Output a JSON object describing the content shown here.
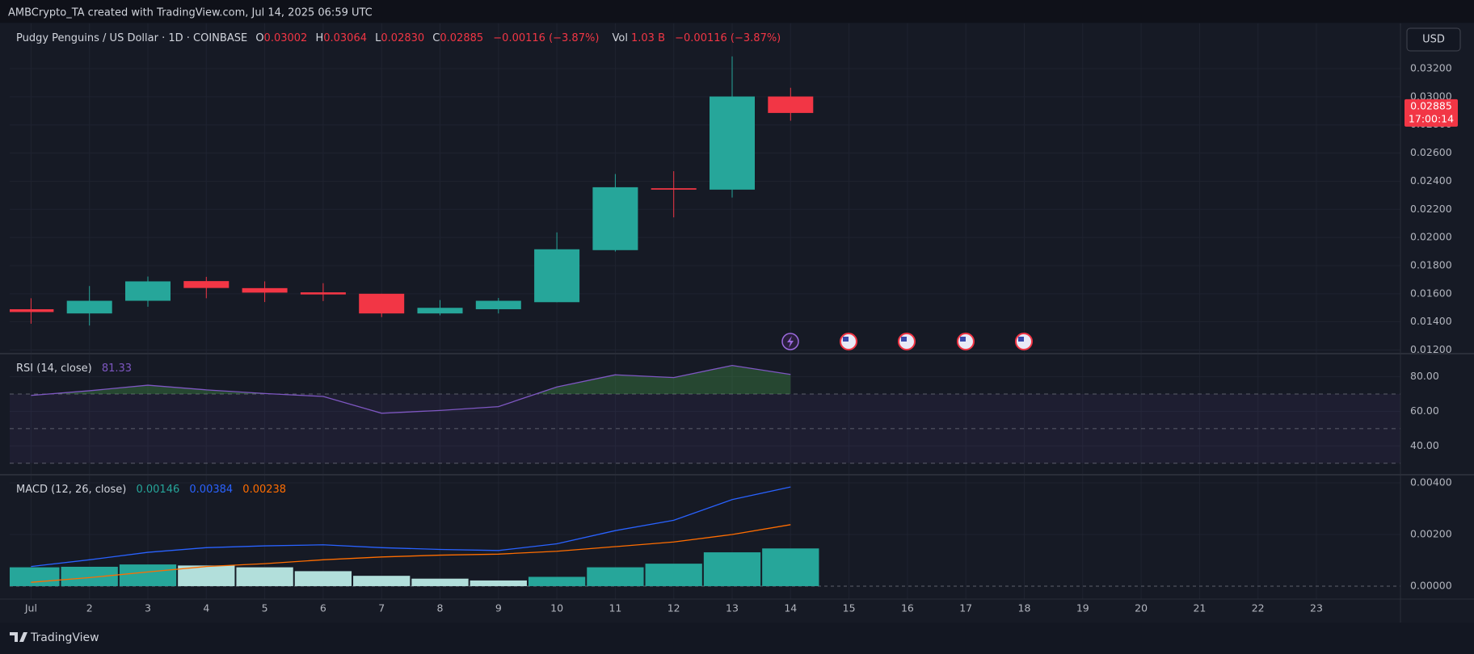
{
  "header": {
    "attribution": "AMBCrypto_TA created with TradingView.com, Jul 14, 2025 06:59 UTC",
    "currency_button": "USD",
    "logo": "TradingView"
  },
  "chart_data": [
    {
      "type": "candlestick",
      "title": "Pudgy Penguins / US Dollar · 1D · COINBASE",
      "legend": {
        "open_label": "O",
        "open": "0.03002",
        "high_label": "H",
        "high": "0.03064",
        "low_label": "L",
        "low": "0.02830",
        "close_label": "C",
        "close": "0.02885",
        "change": "−0.00116 (−3.87%)",
        "volume_label": "Vol",
        "volume": "1.03 B",
        "volume_change": "−0.00116 (−3.87%)"
      },
      "categories": [
        "Jul",
        "2",
        "3",
        "4",
        "5",
        "6",
        "7",
        "8",
        "9",
        "10",
        "11",
        "12",
        "13",
        "14",
        "15",
        "16",
        "17",
        "18",
        "19",
        "20",
        "21",
        "22",
        "23"
      ],
      "open": [
        0.0149,
        0.0146,
        0.0155,
        0.0169,
        0.0164,
        0.0161,
        0.016,
        0.0146,
        0.0149,
        0.0154,
        0.0191,
        0.0235,
        0.0234,
        0.03002,
        null,
        null,
        null,
        null,
        null,
        null,
        null,
        null,
        null
      ],
      "high": [
        0.01568,
        0.01655,
        0.01722,
        0.0172,
        0.01688,
        0.01675,
        0.016,
        0.01555,
        0.0157,
        0.02036,
        0.02451,
        0.02471,
        0.03287,
        0.03064,
        null,
        null,
        null,
        null,
        null,
        null,
        null,
        null,
        null
      ],
      "low": [
        0.01387,
        0.01374,
        0.01508,
        0.01568,
        0.01541,
        0.01548,
        0.01434,
        0.01447,
        0.0146,
        0.0154,
        0.019,
        0.02143,
        0.02284,
        0.0283,
        null,
        null,
        null,
        null,
        null,
        null,
        null,
        null,
        null
      ],
      "close": [
        0.0147,
        0.0155,
        0.01688,
        0.01641,
        0.01608,
        0.01595,
        0.0146,
        0.015,
        0.0155,
        0.01916,
        0.02357,
        0.0234,
        0.03002,
        0.02885,
        null,
        null,
        null,
        null,
        null,
        null,
        null,
        null,
        null
      ],
      "up_color": "#26a69a",
      "down_color": "#f23645",
      "ylim": [
        0.0118,
        0.0351
      ],
      "yticks": [
        {
          "value": 0.012,
          "label": "0.01200"
        },
        {
          "value": 0.014,
          "label": "0.01400"
        },
        {
          "value": 0.016,
          "label": "0.01600"
        },
        {
          "value": 0.018,
          "label": "0.01800"
        },
        {
          "value": 0.02,
          "label": "0.02000"
        },
        {
          "value": 0.022,
          "label": "0.02200"
        },
        {
          "value": 0.024,
          "label": "0.02400"
        },
        {
          "value": 0.026,
          "label": "0.02600"
        },
        {
          "value": 0.028,
          "label": "0.02800"
        },
        {
          "value": 0.03,
          "label": "0.03000"
        },
        {
          "value": 0.032,
          "label": "0.03200"
        }
      ],
      "grid": true,
      "last_price": {
        "value": 0.02885,
        "label": "0.02885",
        "countdown": "17:00:14"
      }
    },
    {
      "type": "line",
      "title": "RSI (14, close)",
      "values": [
        69.2,
        71.9,
        75.1,
        72.4,
        70.3,
        68.6,
        58.9,
        60.5,
        62.7,
        74.1,
        81.1,
        79.5,
        86.5,
        81.33,
        null,
        null,
        null,
        null,
        null,
        null,
        null,
        null,
        null
      ],
      "color": "#7e57c2",
      "levels": [
        70,
        50,
        30
      ],
      "overbought_color": "#4caf50",
      "ylim": [
        23.8,
        92.4
      ],
      "yticks": [
        {
          "value": 80,
          "label": "80.00"
        },
        {
          "value": 60,
          "label": "60.00"
        },
        {
          "value": 40,
          "label": "40.00"
        }
      ]
    },
    {
      "type": "macd",
      "title": "MACD (12, 26, close)",
      "histogram": {
        "values": [
          0.00073,
          0.00075,
          0.00084,
          0.0008,
          0.00073,
          0.00058,
          0.0004,
          0.00029,
          0.00022,
          0.00036,
          0.00073,
          0.00087,
          0.00131,
          0.00146,
          null,
          null,
          null,
          null,
          null,
          null,
          null,
          null,
          null
        ],
        "up_color": "#26a69a",
        "down_color": "#b2dfdb"
      },
      "macd_line": {
        "values": [
          0.00076,
          0.00102,
          0.00131,
          0.00149,
          0.00156,
          0.0016,
          0.00149,
          0.00142,
          0.00138,
          0.00164,
          0.00215,
          0.00255,
          0.00335,
          0.00384,
          null,
          null,
          null,
          null,
          null,
          null,
          null,
          null,
          null
        ],
        "color": "#2962ff"
      },
      "signal_line": {
        "values": [
          0.00015,
          0.00033,
          0.00055,
          0.00076,
          0.00087,
          0.00102,
          0.00113,
          0.0012,
          0.00124,
          0.00135,
          0.00153,
          0.00171,
          0.002,
          0.00238,
          null,
          null,
          null,
          null,
          null,
          null,
          null,
          null,
          null
        ],
        "color": "#ff6d00"
      },
      "ylim": [
        -0.00047,
        0.00425
      ],
      "yticks": [
        {
          "value": 0,
          "label": "0.00000"
        },
        {
          "value": 0.002,
          "label": "0.00200"
        },
        {
          "value": 0.004,
          "label": "0.00400"
        }
      ],
      "zero_line": true
    }
  ]
}
